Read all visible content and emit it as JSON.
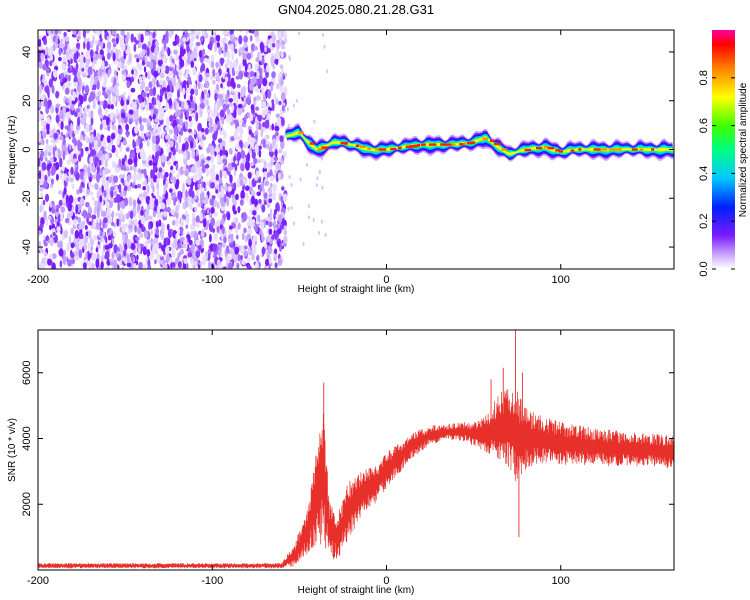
{
  "title": "GN04.2025.080.21.28.G31",
  "chart_data": [
    {
      "type": "heatmap",
      "xlabel": "Height of straight line (km)",
      "ylabel": "Frequency (Hz)",
      "xlim": [
        -200,
        165
      ],
      "ylim": [
        -49,
        49
      ],
      "xticks": [
        -200,
        -100,
        0,
        100
      ],
      "yticks": [
        -40,
        -20,
        0,
        20,
        40
      ],
      "colorbar": {
        "label": "Normalized spectral amplitude",
        "range": [
          0,
          1
        ],
        "ticks": [
          0.0,
          0.2,
          0.4,
          0.6,
          0.8
        ]
      },
      "noise_region_x": [
        -200,
        -58
      ],
      "ridge": [
        {
          "x": -58,
          "y": 5
        },
        {
          "x": -50,
          "y": 7
        },
        {
          "x": -45,
          "y": 3
        },
        {
          "x": -40,
          "y": 0
        },
        {
          "x": -30,
          "y": 3
        },
        {
          "x": -20,
          "y": 2
        },
        {
          "x": -10,
          "y": 0
        },
        {
          "x": 0,
          "y": 0
        },
        {
          "x": 10,
          "y": 1
        },
        {
          "x": 20,
          "y": 2
        },
        {
          "x": 30,
          "y": 2
        },
        {
          "x": 40,
          "y": 2
        },
        {
          "x": 50,
          "y": 3
        },
        {
          "x": 57,
          "y": 5
        },
        {
          "x": 62,
          "y": 2
        },
        {
          "x": 70,
          "y": -2
        },
        {
          "x": 80,
          "y": 0
        },
        {
          "x": 90,
          "y": 1
        },
        {
          "x": 100,
          "y": -1
        },
        {
          "x": 110,
          "y": 0
        },
        {
          "x": 120,
          "y": 0
        },
        {
          "x": 130,
          "y": 0
        },
        {
          "x": 140,
          "y": 0
        },
        {
          "x": 150,
          "y": 0
        },
        {
          "x": 160,
          "y": 0
        },
        {
          "x": 165,
          "y": 0
        }
      ]
    },
    {
      "type": "line",
      "xlabel": "Height of straight line (km)",
      "ylabel": "SNR (10 * v/v)",
      "xlim": [
        -200,
        165
      ],
      "ylim": [
        0,
        7300
      ],
      "xticks": [
        -200,
        -100,
        0,
        100
      ],
      "yticks": [
        2000,
        4000,
        6000
      ],
      "color": "#e8302a",
      "series": [
        {
          "envelope": [
            {
              "x": -200,
              "mean": 130,
              "amp": 80
            },
            {
              "x": -60,
              "mean": 130,
              "amp": 80
            },
            {
              "x": -52,
              "mean": 500,
              "amp": 400
            },
            {
              "x": -45,
              "mean": 1200,
              "amp": 700
            },
            {
              "x": -40,
              "mean": 2300,
              "amp": 1500
            },
            {
              "x": -36,
              "mean": 3000,
              "amp": 2300
            },
            {
              "x": -33,
              "mean": 1200,
              "amp": 900
            },
            {
              "x": -28,
              "mean": 1000,
              "amp": 700
            },
            {
              "x": -22,
              "mean": 1800,
              "amp": 900
            },
            {
              "x": -15,
              "mean": 2300,
              "amp": 700
            },
            {
              "x": -5,
              "mean": 2700,
              "amp": 600
            },
            {
              "x": 5,
              "mean": 3300,
              "amp": 500
            },
            {
              "x": 15,
              "mean": 3800,
              "amp": 400
            },
            {
              "x": 25,
              "mean": 4100,
              "amp": 300
            },
            {
              "x": 35,
              "mean": 4200,
              "amp": 250
            },
            {
              "x": 45,
              "mean": 4200,
              "amp": 300
            },
            {
              "x": 55,
              "mean": 4100,
              "amp": 500
            },
            {
              "x": 60,
              "mean": 4200,
              "amp": 700
            },
            {
              "x": 65,
              "mean": 4400,
              "amp": 1100
            },
            {
              "x": 70,
              "mean": 4300,
              "amp": 1300
            },
            {
              "x": 74,
              "mean": 4200,
              "amp": 1600
            },
            {
              "x": 78,
              "mean": 4000,
              "amp": 1100
            },
            {
              "x": 85,
              "mean": 4000,
              "amp": 800
            },
            {
              "x": 95,
              "mean": 3900,
              "amp": 700
            },
            {
              "x": 110,
              "mean": 3800,
              "amp": 600
            },
            {
              "x": 130,
              "mean": 3700,
              "amp": 550
            },
            {
              "x": 150,
              "mean": 3650,
              "amp": 500
            },
            {
              "x": 165,
              "mean": 3600,
              "amp": 500
            }
          ],
          "peaks": [
            {
              "x": -36,
              "y": 5700
            },
            {
              "x": 60,
              "y": 5800
            },
            {
              "x": 67,
              "y": 6150
            },
            {
              "x": 74,
              "y": 7300
            },
            {
              "x": 78,
              "y": 6000
            },
            {
              "x": 76,
              "y": 1000
            }
          ]
        }
      ]
    }
  ]
}
